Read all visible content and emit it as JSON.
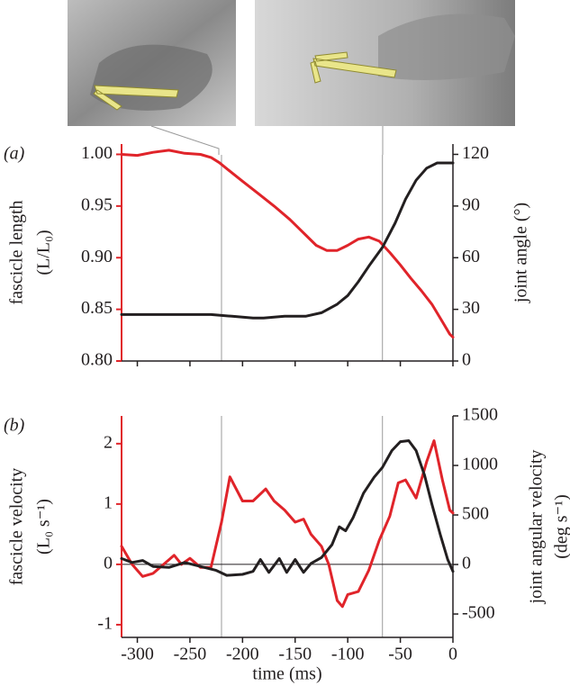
{
  "chart_data": [
    {
      "type": "line",
      "panel_label": "(a)",
      "ylabel": [
        "fascicle length",
        "(L/L₀)"
      ],
      "y2label": [
        "joint angle (°)"
      ],
      "xlim": [
        -315,
        0
      ],
      "ylim": [
        0.8,
        1.01
      ],
      "yticks": [
        {
          "value": 0.8,
          "label": "0.80"
        },
        0.85,
        {
          "value": 0.9,
          "label": "0.90"
        },
        0.95,
        {
          "value": 1.0,
          "label": "1.00"
        }
      ],
      "y_axis_color": "#e0242a",
      "y2lim": [
        0,
        126
      ],
      "y2ticks": [
        0,
        30,
        60,
        90,
        120
      ],
      "vlines": [
        -220,
        -67
      ],
      "series": [
        {
          "color": "#e0242a",
          "axis": "y",
          "x": [
            -315,
            -300,
            -285,
            -270,
            -255,
            -240,
            -230,
            -222,
            -210,
            -200,
            -185,
            -170,
            -155,
            -140,
            -130,
            -120,
            -110,
            -100,
            -90,
            -80,
            -70,
            -60,
            -50,
            -40,
            -30,
            -20,
            -10,
            -3,
            0
          ],
          "values": [
            1.0,
            0.999,
            1.002,
            1.004,
            1.001,
            1.0,
            0.997,
            0.992,
            0.982,
            0.974,
            0.962,
            0.95,
            0.937,
            0.922,
            0.912,
            0.907,
            0.907,
            0.912,
            0.918,
            0.92,
            0.916,
            0.905,
            0.893,
            0.88,
            0.868,
            0.855,
            0.838,
            0.826,
            0.823
          ]
        },
        {
          "color": "#231f20",
          "axis": "y2",
          "x": [
            -315,
            -300,
            -250,
            -230,
            -210,
            -190,
            -180,
            -160,
            -140,
            -125,
            -110,
            -100,
            -90,
            -80,
            -67,
            -55,
            -45,
            -35,
            -25,
            -15,
            -5,
            0
          ],
          "values": [
            27,
            27,
            27,
            27,
            26,
            25,
            25,
            26,
            26,
            28,
            33,
            38,
            46,
            55,
            66,
            80,
            94,
            105,
            112,
            115,
            115,
            115
          ]
        }
      ]
    },
    {
      "type": "line",
      "panel_label": "(b)",
      "ylabel": [
        "fascicle velocity",
        "(L₀ s⁻¹)"
      ],
      "y2label": [
        "joint angular velocity",
        "(deg s⁻¹)"
      ],
      "xlabel": "time (ms)",
      "xlim": [
        -315,
        0
      ],
      "xticks": [
        -300,
        -250,
        -200,
        -150,
        -100,
        -50,
        0
      ],
      "ylim": [
        -1.21,
        2.46
      ],
      "yticks": [
        -1,
        0,
        1,
        2
      ],
      "y_axis_color": "#e0242a",
      "y2lim": [
        -736,
        1500
      ],
      "y2ticks": [
        -500,
        0,
        500,
        1000,
        1500
      ],
      "vlines": [
        -220,
        -67
      ],
      "series": [
        {
          "color": "#e0242a",
          "axis": "y",
          "x": [
            -315,
            -305,
            -295,
            -285,
            -275,
            -265,
            -258,
            -250,
            -240,
            -230,
            -220,
            -212,
            -200,
            -190,
            -178,
            -170,
            -160,
            -150,
            -142,
            -135,
            -125,
            -118,
            -110,
            -105,
            -100,
            -90,
            -80,
            -70,
            -60,
            -52,
            -45,
            -35,
            -25,
            -18,
            -10,
            -3,
            0
          ],
          "values": [
            0.3,
            0.0,
            -0.2,
            -0.15,
            0.0,
            0.15,
            0.0,
            0.1,
            -0.05,
            -0.05,
            0.7,
            1.45,
            1.05,
            1.05,
            1.25,
            1.05,
            0.9,
            0.7,
            0.75,
            0.5,
            0.3,
            0.0,
            -0.6,
            -0.7,
            -0.5,
            -0.45,
            -0.1,
            0.4,
            0.8,
            1.35,
            1.4,
            1.1,
            1.7,
            2.05,
            1.4,
            0.9,
            0.85
          ]
        },
        {
          "color": "#231f20",
          "axis": "y2",
          "x": [
            -315,
            -305,
            -295,
            -285,
            -270,
            -255,
            -240,
            -225,
            -215,
            -200,
            -190,
            -183,
            -175,
            -165,
            -158,
            -150,
            -142,
            -135,
            -125,
            -115,
            -108,
            -102,
            -95,
            -85,
            -75,
            -67,
            -58,
            -50,
            -42,
            -35,
            -27,
            -20,
            -12,
            -5,
            0
          ],
          "values": [
            60,
            20,
            40,
            -20,
            -30,
            20,
            -20,
            -60,
            -110,
            -100,
            -70,
            50,
            -80,
            60,
            -80,
            50,
            -80,
            10,
            70,
            200,
            380,
            340,
            470,
            720,
            880,
            980,
            1150,
            1240,
            1250,
            1150,
            900,
            610,
            300,
            50,
            -70
          ]
        }
      ]
    }
  ]
}
